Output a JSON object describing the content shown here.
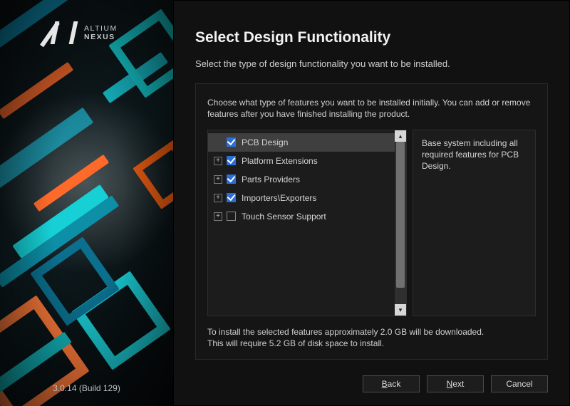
{
  "brand": {
    "line1": "ALTIUM",
    "line2": "NEXUS"
  },
  "version": "3.0.14 (Build 129)",
  "header": {
    "title": "Select Design Functionality",
    "subtitle": "Select the type of design functionality you want to be installed."
  },
  "panel": {
    "instructions": "Choose what type of features you want to be installed initially. You can add or remove features after you have finished installing the product.",
    "features": [
      {
        "label": "PCB Design",
        "checked": true,
        "expandable": false,
        "selected": true
      },
      {
        "label": "Platform Extensions",
        "checked": true,
        "expandable": true,
        "selected": false
      },
      {
        "label": "Parts Providers",
        "checked": true,
        "expandable": true,
        "selected": false
      },
      {
        "label": "Importers\\Exporters",
        "checked": true,
        "expandable": true,
        "selected": false
      },
      {
        "label": "Touch Sensor Support",
        "checked": false,
        "expandable": true,
        "selected": false
      }
    ],
    "description": "Base system including all required features for PCB Design.",
    "size_line1": "To install the selected features approximately 2.0 GB will be downloaded.",
    "size_line2": "This will require 5.2 GB of disk space to install."
  },
  "buttons": {
    "back": "Back",
    "next": "Next",
    "cancel": "Cancel"
  },
  "colors": {
    "bg_right": "#111111",
    "panel_bg": "#151515",
    "item_selected": "#3f3f3f",
    "checkbox_checked": "#2b6ed9",
    "accent_cyan": "#17b8c6",
    "accent_orange": "#ff6a2a"
  }
}
